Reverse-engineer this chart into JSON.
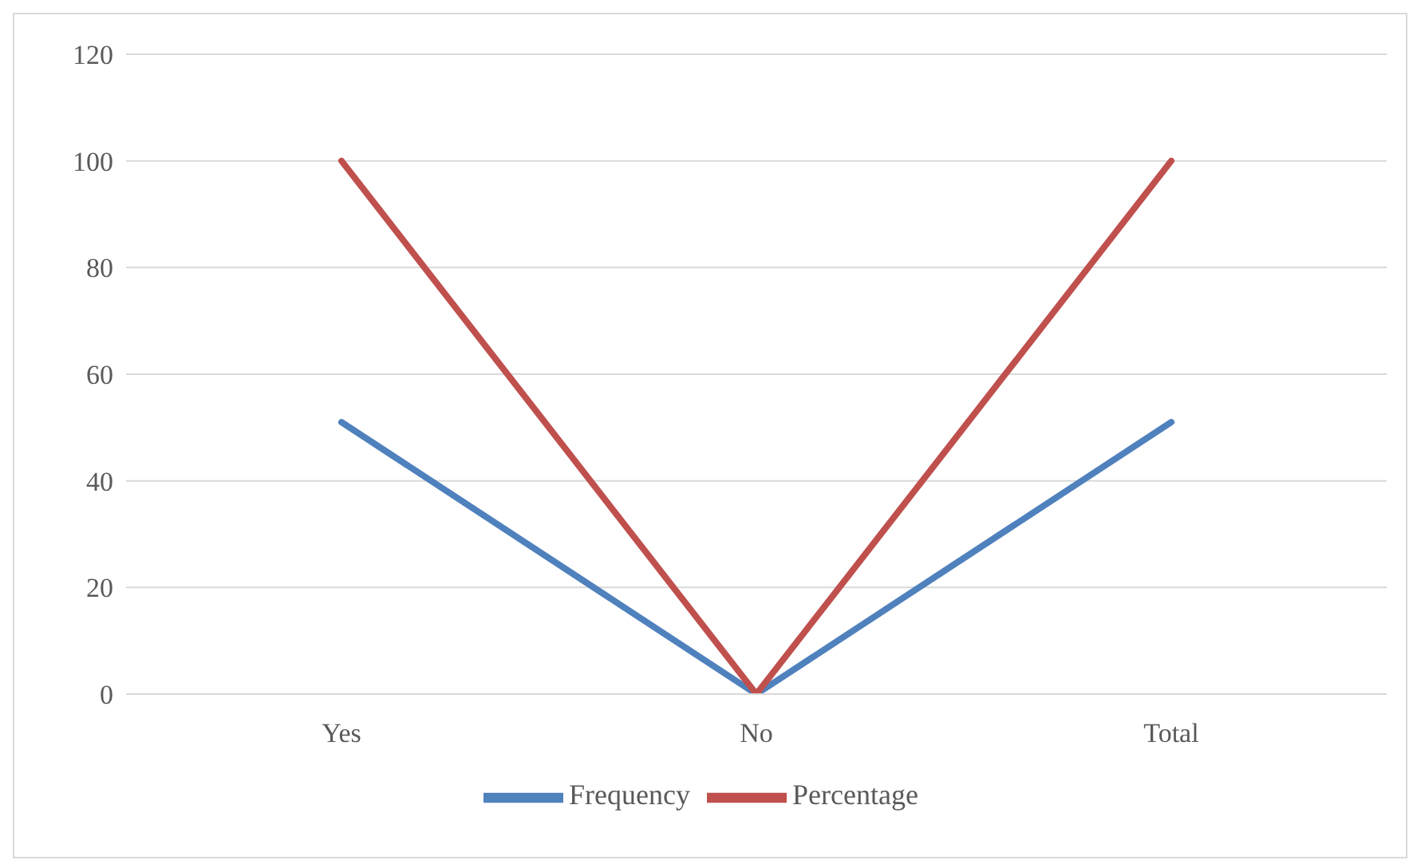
{
  "chart_data": {
    "type": "line",
    "categories": [
      "Yes",
      "No",
      "Total"
    ],
    "series": [
      {
        "name": "Frequency",
        "color": "#4f81bd",
        "values": [
          51,
          0,
          51
        ]
      },
      {
        "name": "Percentage",
        "color": "#c0504d",
        "values": [
          100,
          0,
          100
        ]
      }
    ],
    "ylim": [
      0,
      120
    ],
    "yticks": [
      0,
      20,
      40,
      60,
      80,
      100,
      120
    ],
    "grid": "y",
    "legend": "bottom",
    "marker": "none",
    "line_style": "solid"
  }
}
